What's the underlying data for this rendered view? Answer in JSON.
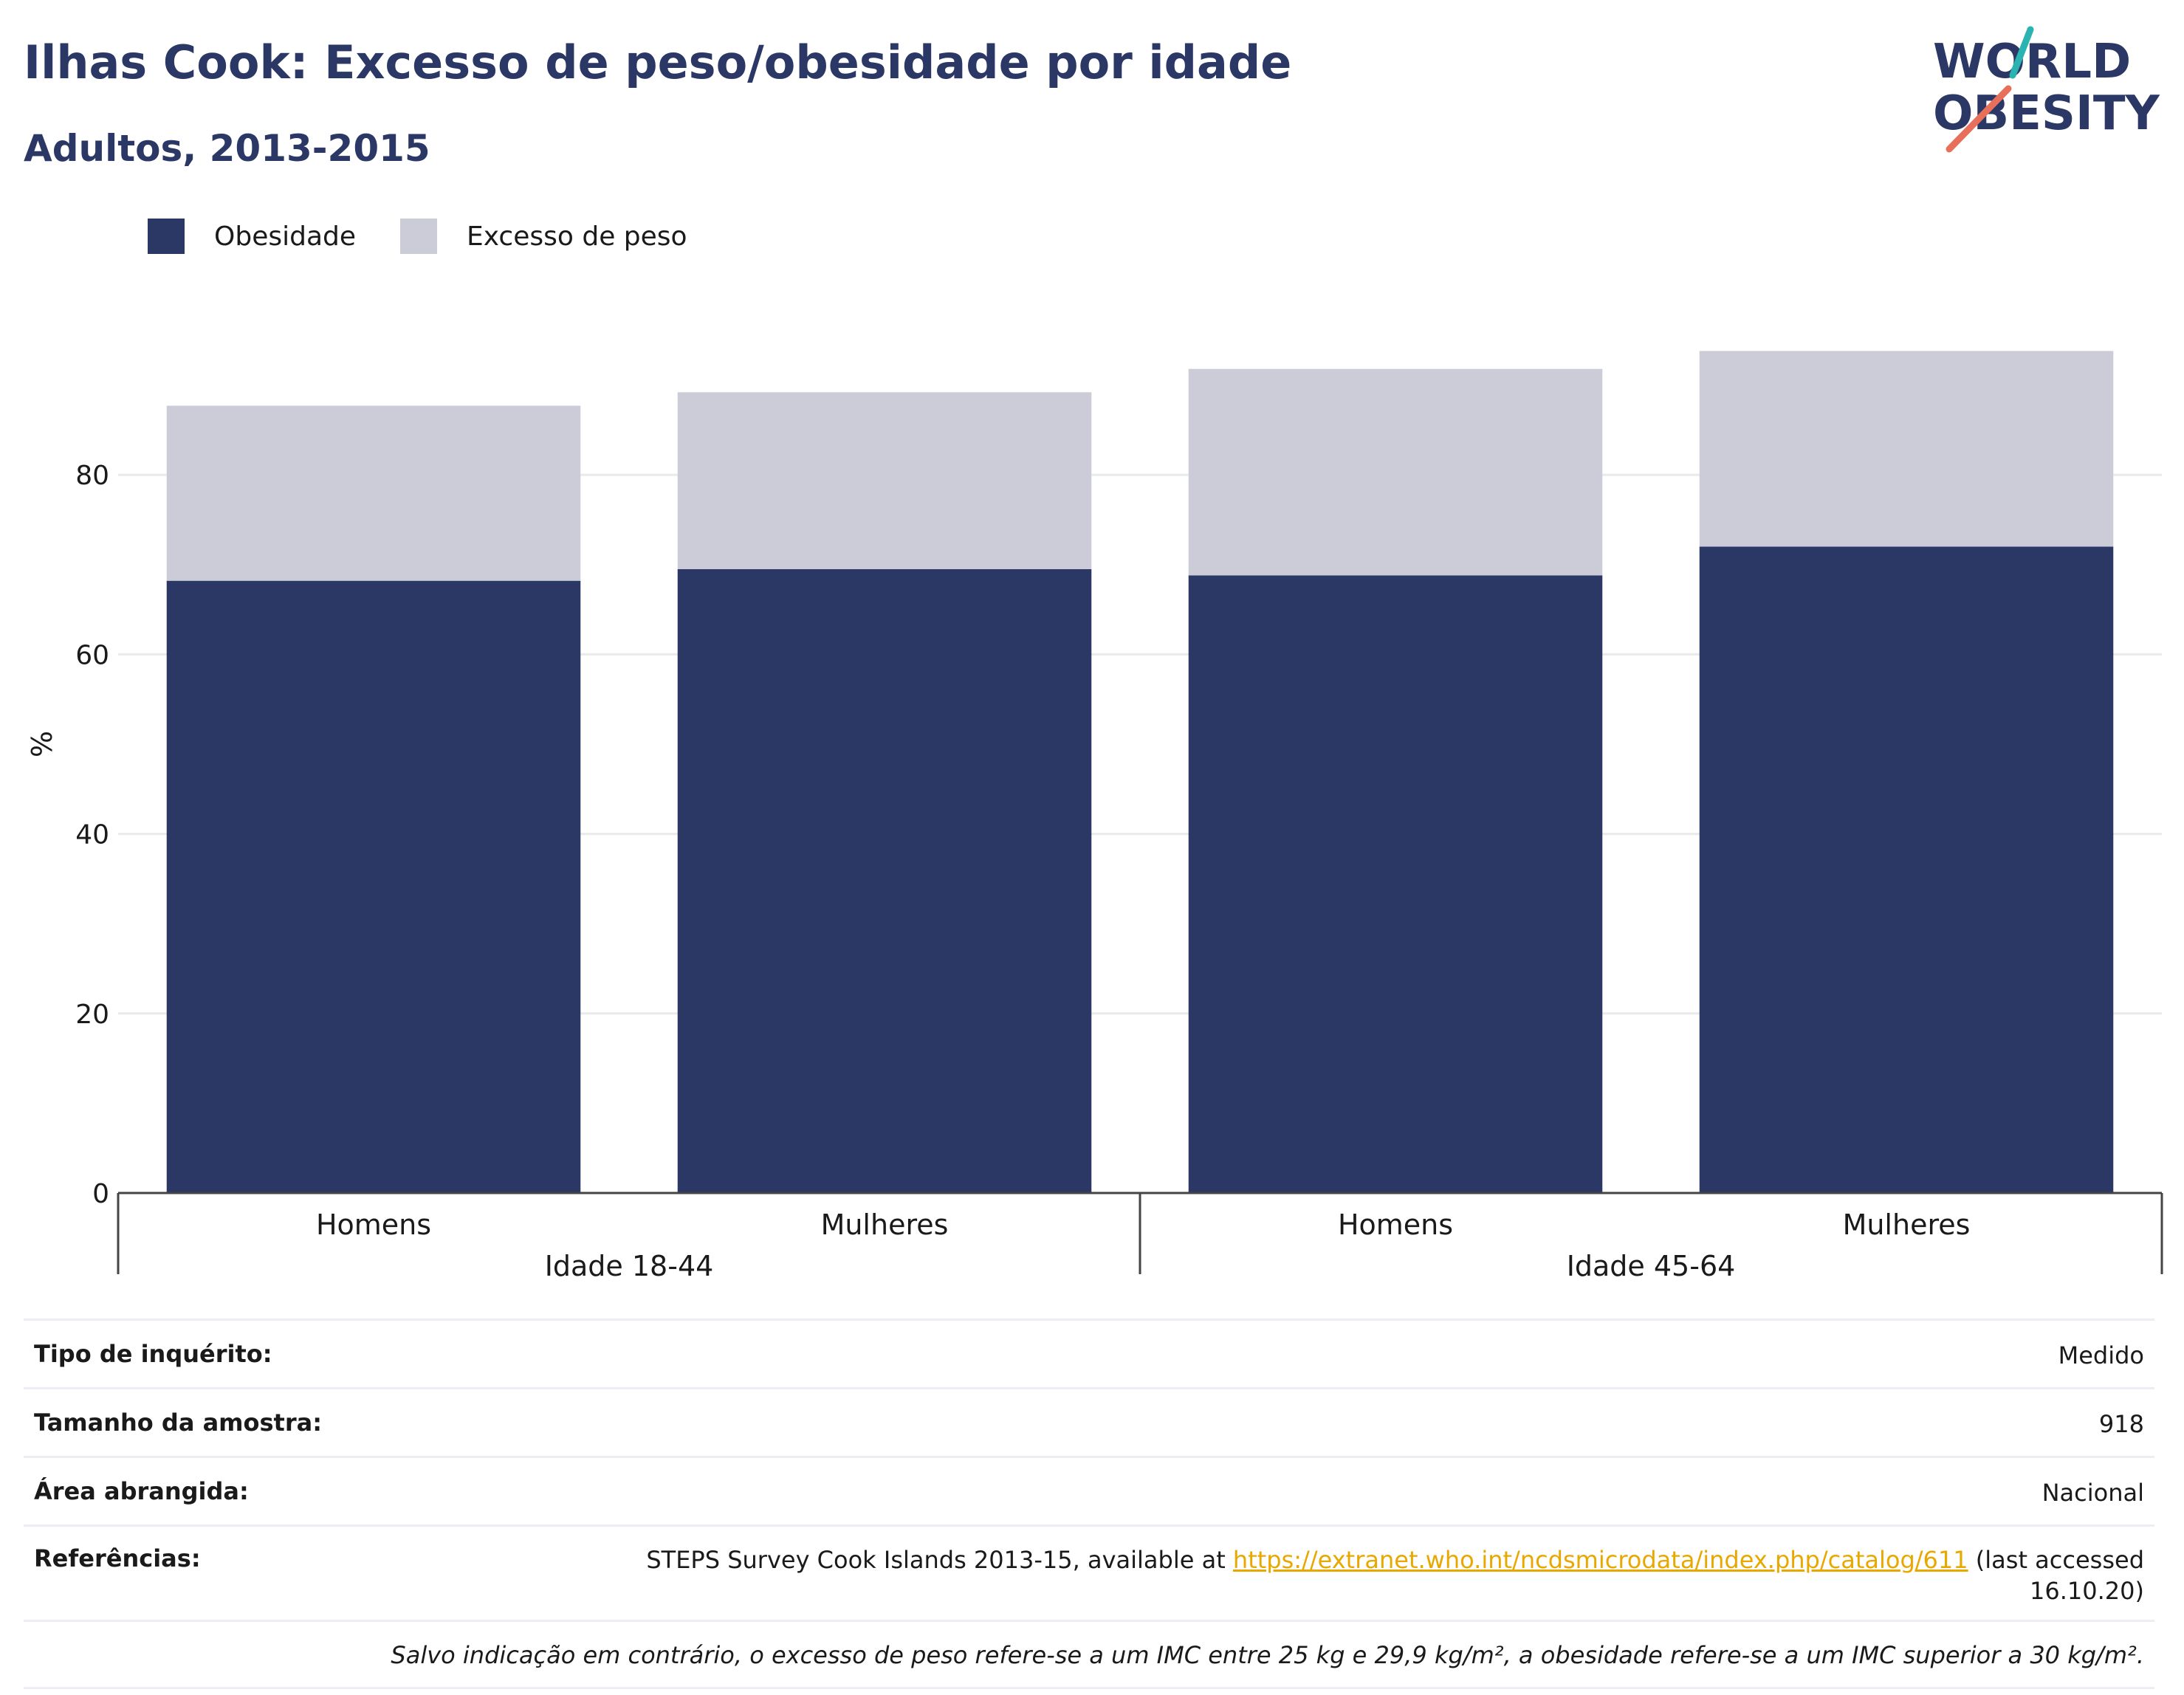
{
  "header": {
    "title": "Ilhas Cook: Excesso de peso/obesidade por idade",
    "subtitle": "Adultos, 2013-2015"
  },
  "logo": {
    "line1": "WORLD",
    "line2": "OBESITY",
    "accent_teal": "#2bb3b1",
    "accent_coral": "#e8705a",
    "color": "#2b3765"
  },
  "legend": [
    {
      "label": "Obesidade",
      "color": "#2b3765"
    },
    {
      "label": "Excesso de peso",
      "color": "#cbccd8"
    }
  ],
  "chart_data": {
    "type": "bar",
    "stacked": true,
    "ylabel": "%",
    "ylim": [
      0,
      100
    ],
    "yticks": [
      "0",
      "20",
      "40",
      "60",
      "80"
    ],
    "grid": true,
    "legend_position": "top-left",
    "categories": [
      "Homens",
      "Mulheres",
      "Homens",
      "Mulheres"
    ],
    "groups": [
      {
        "label": "Idade 18-44",
        "categories": [
          "Homens",
          "Mulheres"
        ]
      },
      {
        "label": "Idade 45-64",
        "categories": [
          "Homens",
          "Mulheres"
        ]
      }
    ],
    "series": [
      {
        "name": "Obesidade",
        "color": "#2b3765",
        "values": [
          68.2,
          69.5,
          68.8,
          72.0
        ]
      },
      {
        "name": "Excesso de peso",
        "color": "#cbccd8",
        "values": [
          19.5,
          19.7,
          23.0,
          21.8
        ]
      }
    ]
  },
  "info": {
    "rows": [
      {
        "key": "Tipo de inquérito:",
        "value": "Medido"
      },
      {
        "key": "Tamanho da amostra:",
        "value": "918"
      },
      {
        "key": "Área abrangida:",
        "value": "Nacional"
      }
    ],
    "ref_key": "Referências:",
    "ref_text_before": "STEPS Survey Cook Islands 2013-15, available at ",
    "ref_link": "https://extranet.who.int/ncdsmicrodata/index.php/catalog/611",
    "ref_text_after": " (last accessed 16.10.20)",
    "note": "Salvo indicação em contrário, o excesso de peso refere-se a um IMC entre 25 kg e 29,9 kg/m², a obesidade refere-se a um IMC superior a 30 kg/m²."
  }
}
